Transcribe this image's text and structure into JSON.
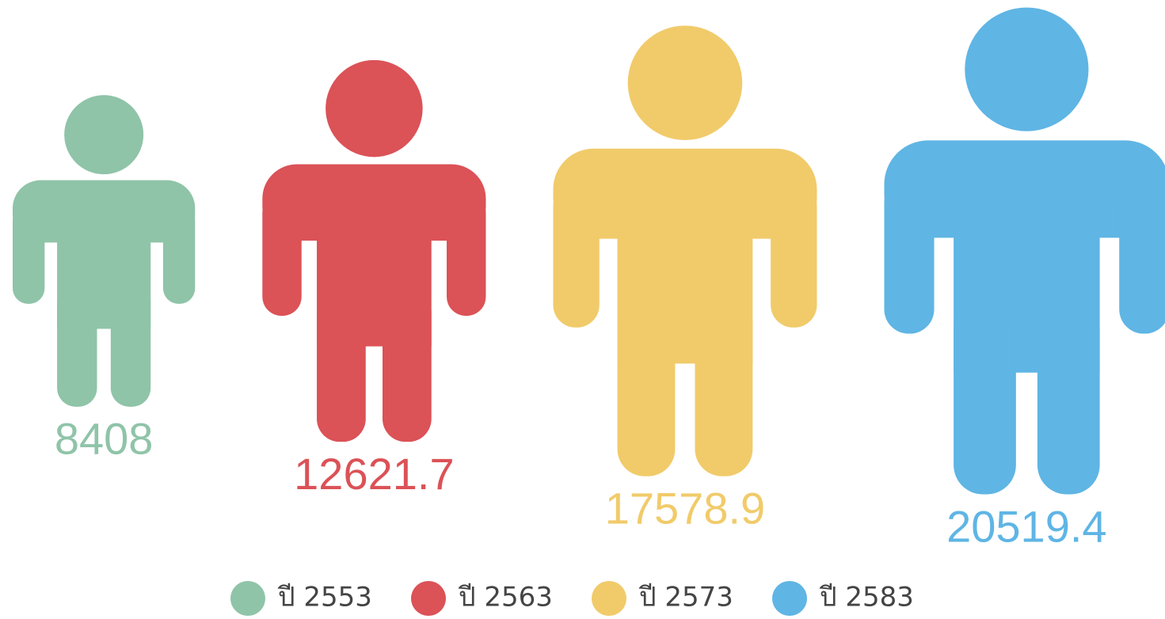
{
  "chart_data": {
    "type": "pictogram",
    "categories": [
      "ปี 2553",
      "ปี 2563",
      "ปี 2573",
      "ปี 2583"
    ],
    "values": [
      8408,
      12621.7,
      17578.9,
      20519.4
    ],
    "colors": [
      "#8fc4a8",
      "#db5257",
      "#f1cb6a",
      "#5fb5e4"
    ]
  }
}
